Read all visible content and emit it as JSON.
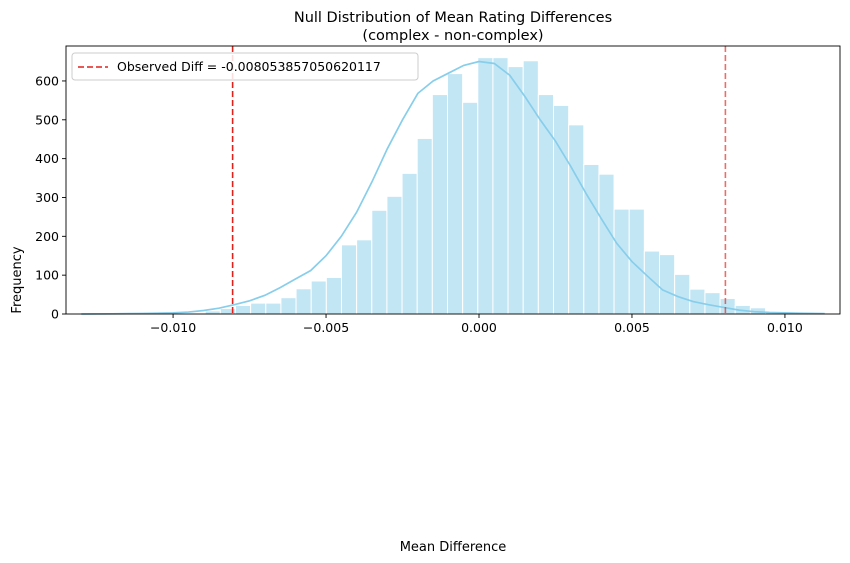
{
  "chart_data": {
    "type": "bar",
    "title_line1": "Null Distribution of Mean Rating Differences",
    "title_line2": "(complex - non-complex)",
    "xlabel": "Mean Difference",
    "ylabel": "Frequency",
    "xlim": [
      -0.0135,
      0.0118
    ],
    "ylim": [
      0,
      690
    ],
    "xticks": [
      -0.01,
      -0.005,
      0.0,
      0.005,
      0.01
    ],
    "xtick_labels": [
      "−0.010",
      "−0.005",
      "0.000",
      "0.005",
      "0.010"
    ],
    "yticks": [
      0,
      100,
      200,
      300,
      400,
      500,
      600
    ],
    "ytick_labels": [
      "0",
      "100",
      "200",
      "300",
      "400",
      "500",
      "600"
    ],
    "bin_edges_start": -0.00895,
    "bin_width": 0.000495,
    "counts": [
      8,
      14,
      22,
      28,
      28,
      42,
      65,
      85,
      94,
      178,
      191,
      267,
      303,
      362,
      452,
      565,
      619,
      545,
      660,
      660,
      637,
      652,
      565,
      537,
      487,
      385,
      360,
      270,
      270,
      162,
      153,
      102,
      64,
      55,
      40,
      22,
      16,
      5,
      4
    ],
    "kde": {
      "x": [
        -0.013,
        -0.012,
        -0.011,
        -0.01,
        -0.0095,
        -0.009,
        -0.0085,
        -0.008,
        -0.0075,
        -0.007,
        -0.0065,
        -0.006,
        -0.0055,
        -0.005,
        -0.0045,
        -0.004,
        -0.0035,
        -0.003,
        -0.0025,
        -0.002,
        -0.0015,
        -0.001,
        -0.0005,
        0.0,
        0.0005,
        0.001,
        0.0015,
        0.002,
        0.0025,
        0.003,
        0.0035,
        0.004,
        0.0045,
        0.005,
        0.0055,
        0.006,
        0.0065,
        0.007,
        0.0075,
        0.008,
        0.0085,
        0.009,
        0.0095,
        0.01,
        0.0105,
        0.0113
      ],
      "y": [
        0,
        0.5,
        1.5,
        3,
        5,
        9,
        15,
        24,
        34,
        48,
        68,
        90,
        112,
        150,
        200,
        262,
        340,
        425,
        500,
        568,
        600,
        620,
        640,
        650,
        645,
        615,
        560,
        500,
        445,
        380,
        310,
        245,
        182,
        135,
        98,
        62,
        45,
        32,
        24,
        17,
        10,
        6,
        4,
        3,
        2,
        1
      ]
    },
    "vlines": [
      {
        "x": -0.008053857050620117,
        "color": "#e0201b",
        "opacity": 1.0
      },
      {
        "x": 0.008053857050620117,
        "color": "#e0201b",
        "opacity": 0.65
      }
    ],
    "legend": {
      "label": "Observed Diff = -0.008053857050620117",
      "placement": "top-left"
    },
    "colors": {
      "bar": "#87ceeb",
      "bar_opacity": 0.5,
      "bar_edge": "#ffffff",
      "kde": "#87ceeb",
      "vline": "#e0201b"
    }
  }
}
